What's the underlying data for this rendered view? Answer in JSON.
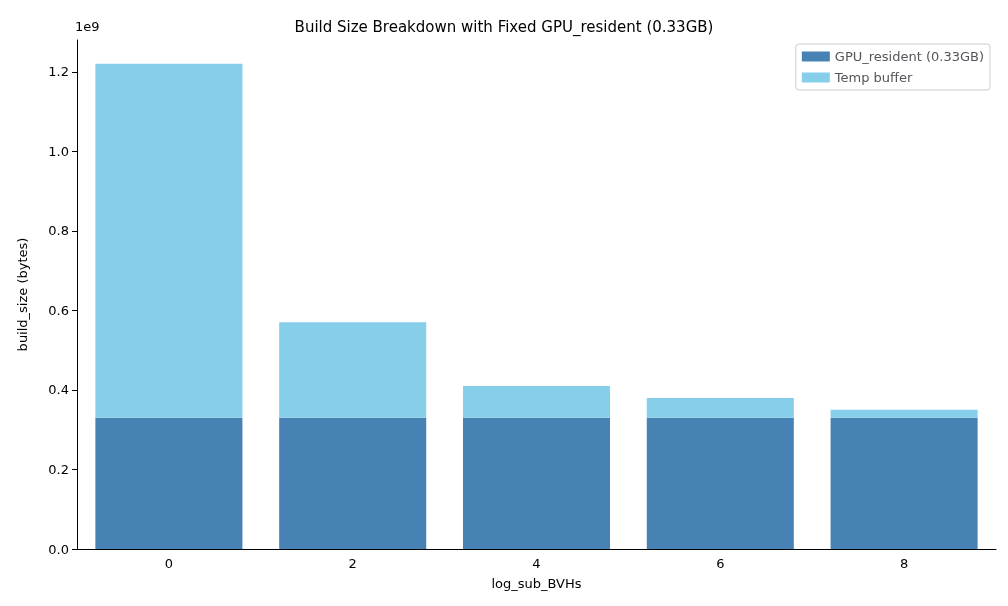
{
  "chart_data": {
    "type": "bar",
    "title": "Build Size Breakdown with Fixed GPU_resident (0.33GB)",
    "xlabel": "log_sub_BVHs",
    "ylabel": "build_size (bytes)",
    "categories": [
      "0",
      "2",
      "4",
      "6",
      "8"
    ],
    "series": [
      {
        "name": "GPU_resident (0.33GB)",
        "color": "#4682b4",
        "values": [
          0.33,
          0.33,
          0.33,
          0.33,
          0.33
        ]
      },
      {
        "name": "Temp buffer",
        "color": "#87ceeb",
        "values": [
          0.89,
          0.24,
          0.08,
          0.05,
          0.02
        ]
      }
    ],
    "stacked": true,
    "ylim": [
      0,
      1.28
    ],
    "yticks": [
      {
        "value": 0,
        "label": "0.0"
      },
      0.2,
      0.4,
      0.6,
      0.8,
      {
        "value": 1,
        "label": "1.0"
      },
      1.2
    ],
    "annotations": [
      "1e9"
    ],
    "grid": false,
    "legend": "top right"
  }
}
